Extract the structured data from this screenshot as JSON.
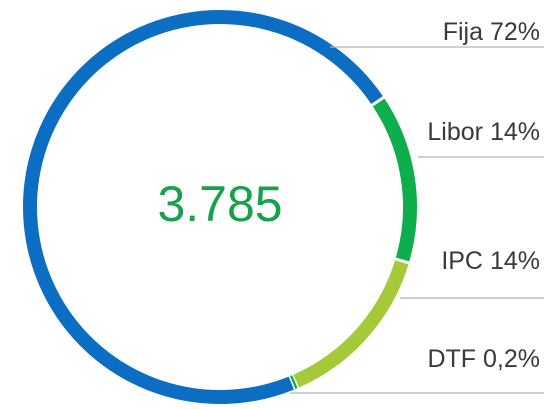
{
  "chart_data": {
    "type": "donut",
    "center_label": "3.785",
    "categories": [
      "Fija",
      "Libor",
      "IPC",
      "DTF"
    ],
    "values": [
      72,
      14,
      14,
      0.2
    ],
    "value_labels": [
      "72%",
      "14%",
      "14%",
      "0,2%"
    ],
    "colors": [
      "#0b6ec3",
      "#0fae4d",
      "#a6c93a",
      "#0fae4d"
    ]
  }
}
